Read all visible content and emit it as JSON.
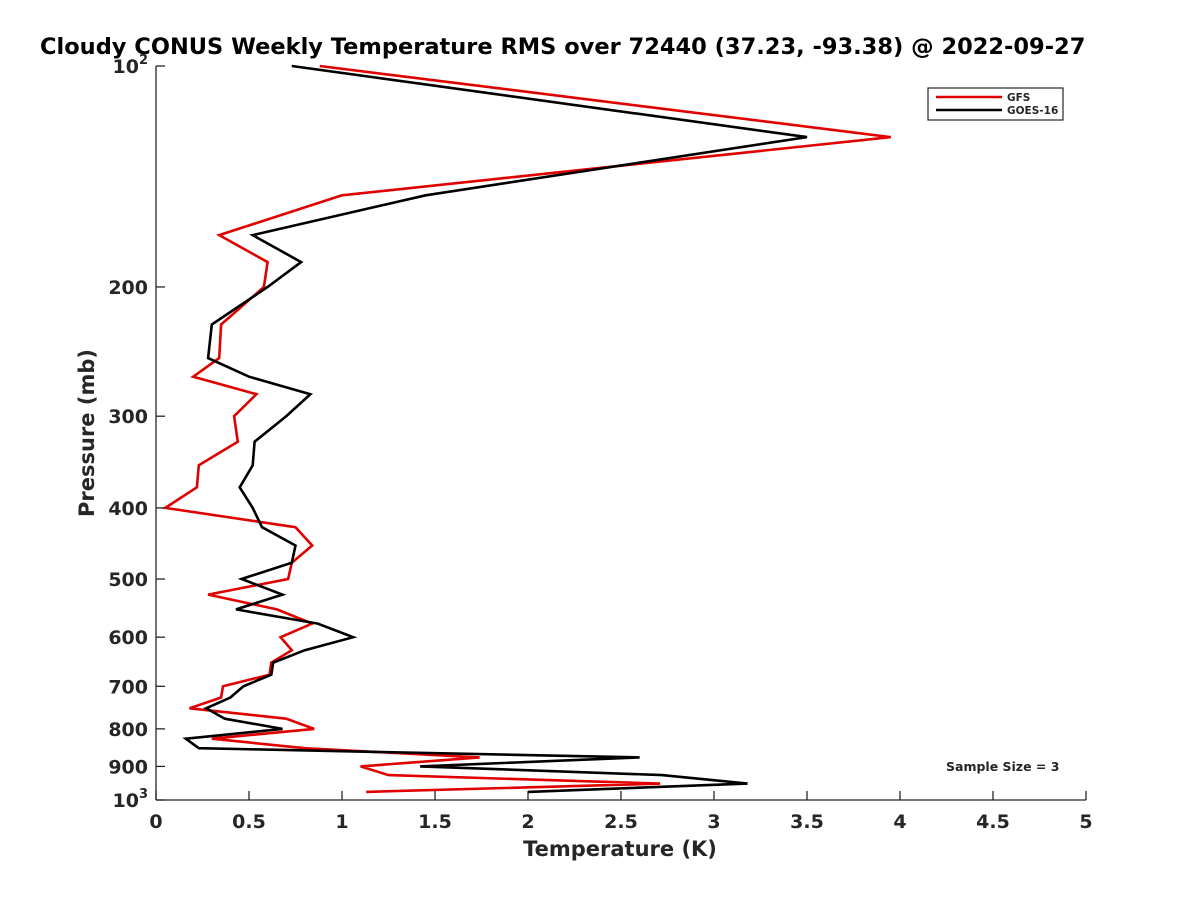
{
  "chart_data": {
    "type": "line",
    "title": "Cloudy CONUS Weekly Temperature RMS over 72440 (37.23, -93.38) @ 2022-09-27",
    "xlabel": "Temperature (K)",
    "ylabel": "Pressure (mb)",
    "xlim": [
      0,
      5
    ],
    "ylim": [
      100,
      1000
    ],
    "yscale": "log",
    "y_reversed": true,
    "xticks": [
      "0",
      "0.5",
      "1",
      "1.5",
      "2",
      "2.5",
      "3",
      "3.5",
      "4",
      "4.5",
      "5"
    ],
    "xtick_values": [
      0,
      0.5,
      1,
      1.5,
      2,
      2.5,
      3,
      3.5,
      4,
      4.5,
      5
    ],
    "yticks": [
      {
        "value": 100,
        "base": "10",
        "exp": "2"
      },
      {
        "value": 200,
        "label": "200"
      },
      {
        "value": 300,
        "label": "300"
      },
      {
        "value": 400,
        "label": "400"
      },
      {
        "value": 500,
        "label": "500"
      },
      {
        "value": 600,
        "label": "600"
      },
      {
        "value": 700,
        "label": "700"
      },
      {
        "value": 800,
        "label": "800"
      },
      {
        "value": 900,
        "label": "900"
      },
      {
        "value": 1000,
        "base": "10",
        "exp": "3"
      }
    ],
    "legend_position": "top-right",
    "annotation": "Sample Size = 3",
    "series": [
      {
        "name": "GFS",
        "color": "#e00000",
        "points": [
          [
            0.88,
            100
          ],
          [
            3.95,
            125
          ],
          [
            1.0,
            150
          ],
          [
            0.34,
            170
          ],
          [
            0.6,
            185
          ],
          [
            0.58,
            200
          ],
          [
            0.35,
            225
          ],
          [
            0.34,
            250
          ],
          [
            0.2,
            265
          ],
          [
            0.54,
            280
          ],
          [
            0.42,
            300
          ],
          [
            0.44,
            325
          ],
          [
            0.23,
            350
          ],
          [
            0.22,
            375
          ],
          [
            0.05,
            400
          ],
          [
            0.75,
            425
          ],
          [
            0.84,
            450
          ],
          [
            0.73,
            475
          ],
          [
            0.71,
            500
          ],
          [
            0.28,
            525
          ],
          [
            0.65,
            550
          ],
          [
            0.84,
            575
          ],
          [
            0.67,
            600
          ],
          [
            0.73,
            625
          ],
          [
            0.62,
            650
          ],
          [
            0.61,
            675
          ],
          [
            0.36,
            700
          ],
          [
            0.35,
            725
          ],
          [
            0.18,
            750
          ],
          [
            0.7,
            775
          ],
          [
            0.85,
            800
          ],
          [
            0.3,
            825
          ],
          [
            0.8,
            850
          ],
          [
            1.74,
            875
          ],
          [
            1.1,
            900
          ],
          [
            1.25,
            925
          ],
          [
            2.71,
            950
          ],
          [
            1.13,
            975
          ]
        ]
      },
      {
        "name": "GOES-16",
        "color": "#000000",
        "points": [
          [
            0.73,
            100
          ],
          [
            3.5,
            125
          ],
          [
            1.45,
            150
          ],
          [
            0.52,
            170
          ],
          [
            0.78,
            185
          ],
          [
            0.6,
            200
          ],
          [
            0.3,
            225
          ],
          [
            0.28,
            250
          ],
          [
            0.5,
            265
          ],
          [
            0.83,
            280
          ],
          [
            0.7,
            300
          ],
          [
            0.53,
            325
          ],
          [
            0.52,
            350
          ],
          [
            0.45,
            375
          ],
          [
            0.52,
            400
          ],
          [
            0.57,
            425
          ],
          [
            0.75,
            450
          ],
          [
            0.73,
            475
          ],
          [
            0.46,
            500
          ],
          [
            0.68,
            525
          ],
          [
            0.43,
            550
          ],
          [
            0.87,
            575
          ],
          [
            1.06,
            600
          ],
          [
            0.8,
            625
          ],
          [
            0.63,
            650
          ],
          [
            0.62,
            675
          ],
          [
            0.47,
            700
          ],
          [
            0.4,
            725
          ],
          [
            0.27,
            750
          ],
          [
            0.37,
            775
          ],
          [
            0.68,
            800
          ],
          [
            0.16,
            825
          ],
          [
            0.23,
            850
          ],
          [
            2.6,
            875
          ],
          [
            1.42,
            900
          ],
          [
            2.72,
            925
          ],
          [
            3.18,
            950
          ],
          [
            2.0,
            975
          ]
        ]
      }
    ]
  }
}
